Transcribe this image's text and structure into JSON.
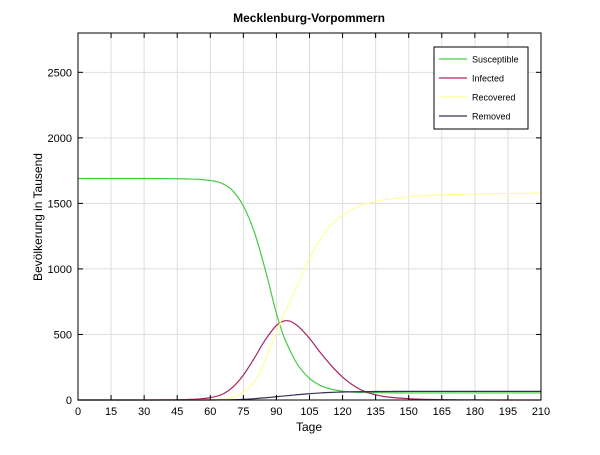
{
  "chart_data": {
    "type": "line",
    "title": "Mecklenburg-Vorpommern",
    "xlabel": "Tage",
    "ylabel": "Bevölkerung in Tausend",
    "xlim": [
      0,
      210
    ],
    "ylim": [
      0,
      2800
    ],
    "x_ticks": [
      0,
      15,
      30,
      45,
      60,
      75,
      90,
      105,
      120,
      135,
      150,
      165,
      180,
      195,
      210
    ],
    "y_ticks": [
      0,
      500,
      1000,
      1500,
      2000,
      2500
    ],
    "grid": true,
    "legend_position": "top-right",
    "x": [
      0,
      10,
      20,
      30,
      40,
      45,
      50,
      55,
      60,
      65,
      70,
      75,
      80,
      85,
      90,
      93,
      95,
      97,
      100,
      105,
      110,
      115,
      120,
      125,
      130,
      135,
      140,
      150,
      160,
      170,
      180,
      195,
      210
    ],
    "series": [
      {
        "name": "Susceptible",
        "color": "#44cc44",
        "values": [
          1690,
          1690,
          1690,
          1690,
          1689,
          1688,
          1686,
          1683,
          1675,
          1655,
          1600,
          1480,
          1280,
          990,
          660,
          500,
          420,
          350,
          260,
          165,
          110,
          82,
          67,
          60,
          57,
          56,
          55,
          54,
          54,
          54,
          54,
          54,
          54
        ]
      },
      {
        "name": "Infected",
        "color": "#aa2266",
        "values": [
          0,
          0,
          0,
          0,
          1,
          2,
          4,
          8,
          18,
          40,
          95,
          190,
          320,
          460,
          570,
          600,
          605,
          595,
          560,
          470,
          360,
          260,
          175,
          110,
          65,
          40,
          24,
          10,
          4,
          2,
          1,
          0,
          0
        ]
      },
      {
        "name": "Recovered",
        "color": "#ffff99",
        "values": [
          0,
          0,
          0,
          0,
          0,
          0,
          0,
          1,
          3,
          8,
          20,
          60,
          140,
          310,
          520,
          640,
          710,
          780,
          890,
          1080,
          1230,
          1340,
          1410,
          1460,
          1495,
          1515,
          1530,
          1550,
          1562,
          1568,
          1572,
          1576,
          1578
        ]
      },
      {
        "name": "Removed",
        "color": "#333355",
        "values": [
          0,
          0,
          0,
          0,
          0,
          0,
          0,
          0,
          0,
          1,
          2,
          5,
          10,
          17,
          25,
          30,
          33,
          36,
          41,
          48,
          54,
          58,
          61,
          63,
          64,
          65,
          65,
          66,
          66,
          66,
          66,
          66,
          66
        ]
      }
    ]
  }
}
